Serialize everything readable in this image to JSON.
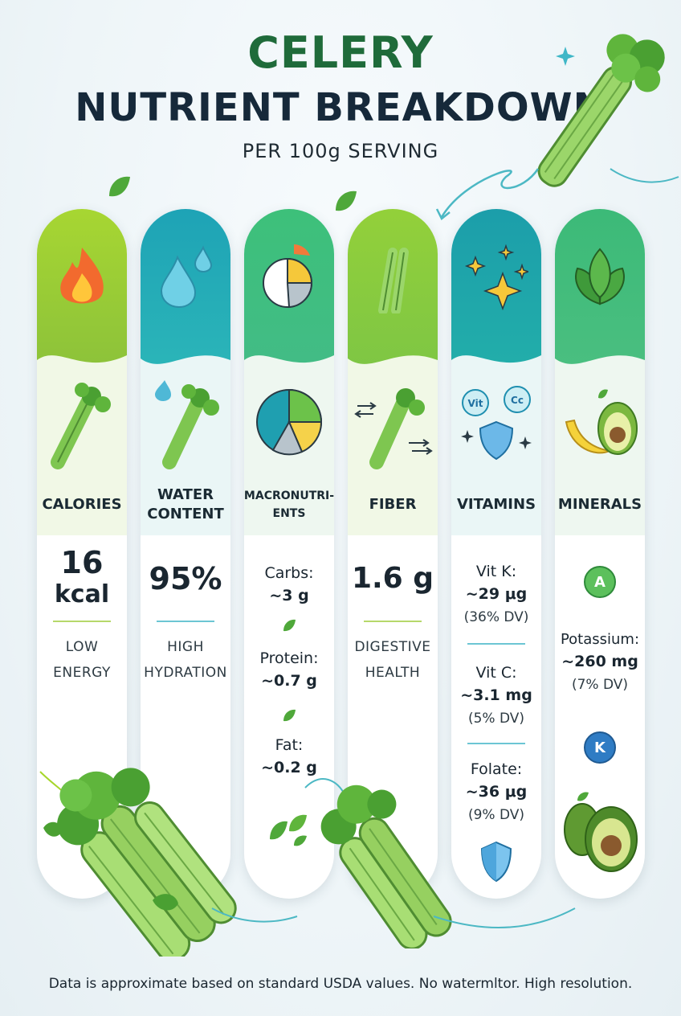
{
  "header": {
    "title_line1": "CELERY",
    "title_line2": "NUTRIENT BREAKDOWN",
    "subtitle": "PER 100g SERVING"
  },
  "colors": {
    "calories": "#9ccc2e",
    "water": "#1fa8b8",
    "macros": "#3cbf7a",
    "fiber": "#8fcc3a",
    "vitamins": "#1fa3a8",
    "minerals": "#3cba78",
    "title_green": "#1f6b3a",
    "title_dark": "#16293a"
  },
  "columns": {
    "calories": {
      "label": "CALORIES",
      "value": "16",
      "unit": "kcal",
      "desc1": "LOW",
      "desc2": "ENERGY",
      "top_icon": "flame-icon",
      "mid_icon": "celery-icon"
    },
    "water": {
      "label1": "WATER",
      "label2": "CONTENT",
      "value": "95%",
      "desc1": "HIGH",
      "desc2": "HYDRATION",
      "top_icon": "water-drop-icon",
      "mid_icon": "celery-water-icon"
    },
    "macros": {
      "label1": "MACRONUTRI-",
      "label2": "ENTS",
      "carbs_label": "Carbs:",
      "carbs_value": "~3 g",
      "protein_label": "Protein:",
      "protein_value": "~0.7 g",
      "fat_label": "Fat:",
      "fat_value": "~0.2 g",
      "top_icon": "pie-chart-icon",
      "mid_icon": "pie-chart-icon"
    },
    "fiber": {
      "label": "FIBER",
      "value": "1.6 g",
      "desc1": "DIGESTIVE",
      "desc2": "HEALTH",
      "top_icon": "celery-stalk-icon",
      "mid_icon": "celery-arrows-icon"
    },
    "vitamins": {
      "label": "VITAMINS",
      "vitk_label": "Vit K:",
      "vitk_value": "~29 μg",
      "vitk_dv": "(36% DV)",
      "vitc_label": "Vit C:",
      "vitc_value": "~3.1 mg",
      "vitc_dv": "(5% DV)",
      "folate_label": "Folate:",
      "folate_value": "~36 μg",
      "folate_dv": "(9% DV)",
      "badge1": "Vit",
      "badge2": "Cc",
      "top_icon": "sparkle-icon",
      "mid_icon": "vitamin-shield-icon"
    },
    "minerals": {
      "label": "MINERALS",
      "badge_a": "A",
      "potassium_label": "Potassium:",
      "potassium_value": "~260 mg",
      "potassium_dv": "(7% DV)",
      "badge_k": "K",
      "top_icon": "leaf-icon",
      "mid_icon": "banana-avocado-icon"
    }
  },
  "footnote": "Data is approximate based on standard USDA values. No watermltor. High resolution."
}
